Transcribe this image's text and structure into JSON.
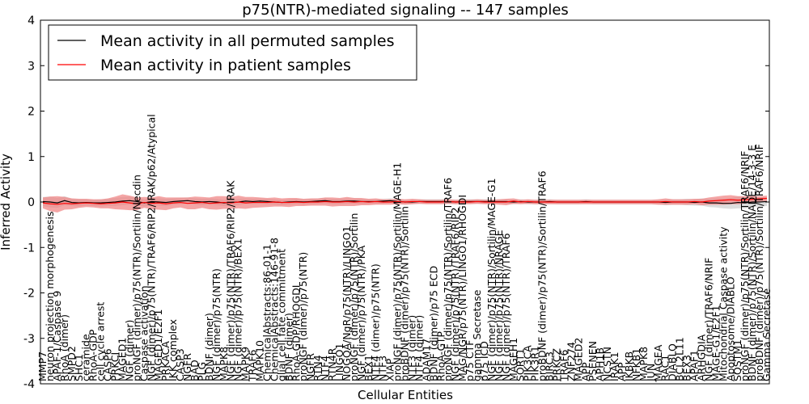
{
  "chart_data": {
    "type": "line",
    "title": "p75(NTR)-mediated signaling -- 147 samples",
    "xlabel": "Cellular Entities",
    "ylabel": "Inferred Activity",
    "ylim": [
      -4,
      4
    ],
    "yticks": [
      "-4",
      "-3",
      "-2",
      "-1",
      "0",
      "1",
      "2",
      "3",
      "4"
    ],
    "legend_position": "top-left",
    "categories": [
      "MMP7",
      "neuron projection morphogenesis",
      "APAF-1/Caspase 9",
      "RhoA (dimer)",
      "SMPD2",
      "SHC1",
      "ceramide",
      "RhoA-GDP",
      "cell cycle arrest",
      "CASP6",
      "PRKCI",
      "MAGED1",
      "NGF (dimer)",
      "proNGF (dimer)/p75(NTR)/Sortilin/Necdin",
      "Caspase activation",
      "NGF (dimer)/p75(NTR)/TRAF6/RIP2/IRAK/p62/Atypical",
      "MAGED1/E2F1",
      "PRKACA",
      "IKK complex",
      "CASP3",
      "NGFR",
      "BAD",
      "PLG",
      "BDNF (dimer)",
      "NGF (dimer)/p75(NTR)",
      "MAPK8",
      "NGF (dimer)/p75(NTR)/TRAF6/RIP2/IRAK",
      "NGF (dimer)/p75(NTR)/BEX1",
      "MAPK9",
      "TRAF6",
      "MAPK10",
      "ChemicalAbstracts:86-01-1",
      "ChemicalAbstracts:146-91-8",
      "glial cell fate commitment",
      "BDNF (dimer)",
      "RhoA-GDP/RHOGDI",
      "proNGF (dimer)/p75(NTR)",
      "NGFR",
      "RTN4",
      "NTF4",
      "RTN4R",
      "LINGO1",
      "NOGOA/NgR/p75(NTR)/LINGO1",
      "proNGF (dimer)/p75(NTR)/Sortilin",
      "NGF (dimer)/p75(NTR)/PKA",
      "BEX1",
      "NTF4 (dimer)/p75(NTR)",
      "NTF3",
      "XIAP",
      "proNGF (dimer)/p75(NTR)/Sortilin/MAGE-H1",
      "proBDNF (dimer)/p75(NTR)/Sortilin",
      "NTF3 (dimer)",
      "NTF4 (dimer)",
      "ADAM17",
      "BDNF (dimer)/p75 ECD",
      "RhoA-GTP",
      "proNGF (dimer)/p75(NTR)/Sortilin/TRAF6",
      "NGF (dimer)/p75(NTR)/TRAF6/RIP2",
      "MAG/NGR/p75(NTR)/LINGO1/RHOGDI",
      "p75 CTF",
      "gamma Secretase",
      "p75 ICD",
      "NGF (dimer)/p75(NTR)/Sortilin/MAGE-G1",
      "NGF (dimer)/p75(NTR)/NRAGE",
      "NGF (dimer)/p75(NTR)/TRAF6",
      "MAGEH1",
      "SORT1",
      "PIK3CA",
      "PIK3R1",
      "proBDNF (dimer)/p75(NTR)/Sortilin/TRAF6",
      "BIRC3",
      "PRKCZ",
      "TRAF6",
      "ZNF274",
      "MAGED2",
      "APP",
      "PSENEN",
      "APH1B",
      "NCSTN",
      "IRAK1",
      "APP",
      "IKBKB",
      "NFKB1",
      "MAPK8",
      "JUN",
      "MAGEA",
      "RAC1",
      "DIABLO",
      "BCL2L11",
      "BEX3",
      "APAF1",
      "ARHGDIA",
      "NGF (dimer)/TRAF6/NRIF",
      "MAGE-G1/E2F1",
      "Mitochondrial Caspase activity",
      "Apoptosome/DIABLO",
      "SQSTM1",
      "proNGF (dimer)/p75(NTR)/Sortilin/TRAF6/NRIF",
      "BDNF (dimer)/p75(NTR)/Sortilin/NADE/14-3-3 E",
      "proBDNF (dimer)/p75(NTR)/Sortilin/TRAF6/NRIF",
      "Gamma Secretase"
    ],
    "series": [
      {
        "name": "Mean activity in all permuted samples",
        "color": "#000000",
        "values": [
          0.01,
          0.0,
          -0.02,
          0.03,
          -0.01,
          -0.02,
          -0.01,
          -0.02,
          -0.02,
          -0.01,
          0.0,
          0.02,
          0.03,
          0.01,
          -0.02,
          0.01,
          0.0,
          -0.01,
          0.01,
          0.02,
          0.03,
          0.01,
          0.0,
          0.01,
          0.0,
          -0.02,
          -0.01,
          0.0,
          0.02,
          0.01,
          0.02,
          0.01,
          0.0,
          -0.01,
          0.0,
          0.01,
          0.0,
          0.01,
          0.02,
          0.03,
          0.01,
          0.01,
          0.02,
          0.02,
          0.01,
          0.01,
          0.01,
          0.02,
          0.03,
          0.01,
          0.0,
          0.0,
          0.01,
          0.01,
          0.01,
          0.01,
          0.01,
          0.0,
          0.01,
          0.01,
          0.01,
          0.01,
          0.01,
          0.01,
          0.01,
          0.0,
          0.01,
          0.0,
          0.0,
          0.0,
          0.01,
          0.0,
          0.0,
          0.0,
          0.0,
          0.01,
          0.0,
          0.0,
          0.0,
          0.0,
          0.0,
          0.0,
          0.0,
          0.0,
          0.0,
          0.0,
          -0.01,
          0.0,
          0.0,
          0.0,
          -0.01,
          0.0,
          -0.02,
          -0.02,
          -0.03,
          -0.03,
          -0.01,
          -0.02,
          0.0,
          0.0,
          0.01
        ],
        "band": [
          0.1,
          0.12,
          0.11,
          0.1,
          0.08,
          0.08,
          0.07,
          0.07,
          0.08,
          0.08,
          0.09,
          0.09,
          0.09,
          0.08,
          0.08,
          0.08,
          0.08,
          0.08,
          0.07,
          0.07,
          0.07,
          0.07,
          0.07,
          0.07,
          0.07,
          0.07,
          0.07,
          0.07,
          0.06,
          0.06,
          0.06,
          0.06,
          0.06,
          0.06,
          0.06,
          0.06,
          0.06,
          0.06,
          0.06,
          0.06,
          0.06,
          0.06,
          0.06,
          0.06,
          0.06,
          0.05,
          0.05,
          0.05,
          0.05,
          0.05,
          0.05,
          0.05,
          0.05,
          0.05,
          0.05,
          0.05,
          0.05,
          0.05,
          0.05,
          0.05,
          0.05,
          0.05,
          0.05,
          0.05,
          0.05,
          0.05,
          0.05,
          0.05,
          0.05,
          0.05,
          0.05,
          0.05,
          0.05,
          0.05,
          0.05,
          0.05,
          0.05,
          0.05,
          0.05,
          0.05,
          0.05,
          0.05,
          0.05,
          0.05,
          0.05,
          0.05,
          0.06,
          0.06,
          0.06,
          0.07,
          0.07,
          0.08,
          0.09,
          0.1,
          0.11,
          0.12,
          0.13,
          0.12,
          0.11,
          0.1,
          0.1
        ]
      },
      {
        "name": "Mean activity in patient samples",
        "color": "#ff0000",
        "band_color": "#f08080",
        "values": [
          -0.02,
          -0.04,
          -0.05,
          -0.03,
          -0.04,
          -0.03,
          -0.02,
          -0.03,
          -0.04,
          -0.03,
          -0.02,
          0.0,
          -0.02,
          -0.04,
          -0.01,
          -0.03,
          -0.02,
          -0.04,
          -0.02,
          -0.01,
          -0.03,
          -0.02,
          -0.01,
          -0.03,
          -0.02,
          -0.01,
          -0.02,
          0.0,
          -0.02,
          -0.01,
          -0.01,
          -0.01,
          0.0,
          -0.01,
          -0.01,
          0.0,
          -0.01,
          0.0,
          0.0,
          0.01,
          0.0,
          0.0,
          0.01,
          0.0,
          0.01,
          0.0,
          0.01,
          0.0,
          0.0,
          0.01,
          0.0,
          0.01,
          0.01,
          0.0,
          0.0,
          0.0,
          0.01,
          0.0,
          0.0,
          0.0,
          0.01,
          0.0,
          0.0,
          0.0,
          0.0,
          0.02,
          0.0,
          0.01,
          0.0,
          0.0,
          0.0,
          0.0,
          0.0,
          0.0,
          0.0,
          0.0,
          0.0,
          0.0,
          0.0,
          0.0,
          0.0,
          0.0,
          0.0,
          0.0,
          0.0,
          0.0,
          0.01,
          0.0,
          0.0,
          0.0,
          0.01,
          0.0,
          0.02,
          0.03,
          0.04,
          0.05,
          0.04,
          0.05,
          0.06,
          0.07,
          0.08
        ],
        "band": [
          0.12,
          0.16,
          0.18,
          0.14,
          0.12,
          0.1,
          0.09,
          0.09,
          0.1,
          0.11,
          0.14,
          0.17,
          0.16,
          0.14,
          0.12,
          0.13,
          0.15,
          0.14,
          0.12,
          0.11,
          0.13,
          0.14,
          0.12,
          0.13,
          0.15,
          0.14,
          0.13,
          0.14,
          0.13,
          0.12,
          0.11,
          0.1,
          0.1,
          0.09,
          0.1,
          0.09,
          0.08,
          0.08,
          0.08,
          0.09,
          0.1,
          0.09,
          0.1,
          0.09,
          0.08,
          0.07,
          0.07,
          0.06,
          0.06,
          0.06,
          0.06,
          0.06,
          0.05,
          0.05,
          0.05,
          0.05,
          0.05,
          0.05,
          0.05,
          0.05,
          0.05,
          0.05,
          0.05,
          0.06,
          0.07,
          0.06,
          0.05,
          0.05,
          0.05,
          0.05,
          0.05,
          0.05,
          0.05,
          0.05,
          0.05,
          0.05,
          0.05,
          0.05,
          0.05,
          0.05,
          0.05,
          0.05,
          0.05,
          0.05,
          0.05,
          0.06,
          0.07,
          0.06,
          0.06,
          0.06,
          0.06,
          0.07,
          0.08,
          0.09,
          0.1,
          0.1,
          0.09,
          0.08,
          0.07,
          0.06,
          0.06
        ]
      }
    ]
  }
}
